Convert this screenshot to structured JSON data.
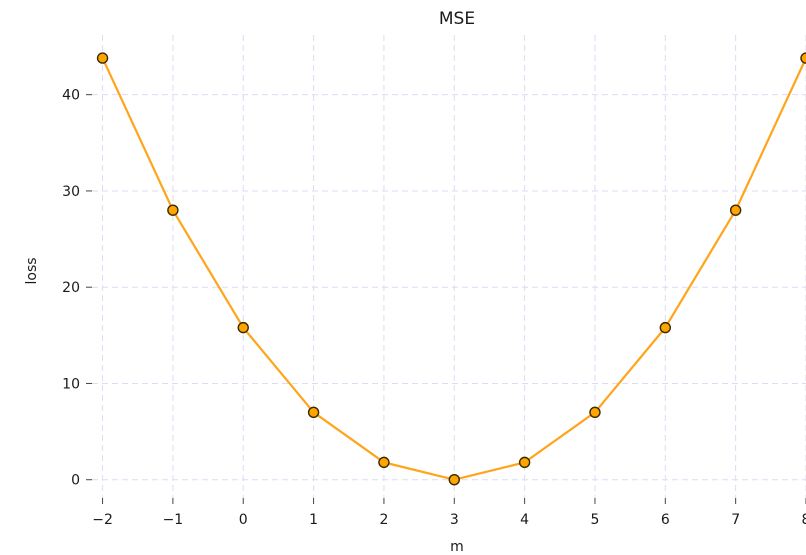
{
  "chart_data": {
    "type": "line",
    "title": "MSE",
    "xlabel": "m",
    "ylabel": "loss",
    "x": [
      -2,
      -1,
      0,
      1,
      2,
      3,
      4,
      5,
      6,
      7,
      8
    ],
    "series": [
      {
        "values": [
          43.8,
          28.0,
          15.8,
          7.0,
          1.8,
          0.0,
          1.8,
          7.0,
          15.8,
          28.0,
          43.8
        ]
      }
    ],
    "x_ticks": [
      -2,
      -1,
      0,
      1,
      2,
      3,
      4,
      5,
      6,
      7,
      8
    ],
    "x_tick_labels": [
      "−2",
      "−1",
      "0",
      "1",
      "2",
      "3",
      "4",
      "5",
      "6",
      "7",
      "8"
    ],
    "y_ticks": [
      0,
      10,
      20,
      30,
      40
    ],
    "y_tick_labels": [
      "0",
      "10",
      "20",
      "30",
      "40"
    ],
    "xlim": [
      -2.15,
      8.0
    ],
    "ylim": [
      -1.9,
      46.2
    ],
    "grid": true,
    "colors": {
      "line": "#ffa41b",
      "marker_fill": "#ffa500",
      "marker_edge": "#3a2a00",
      "grid": "#dcdcf5"
    }
  }
}
